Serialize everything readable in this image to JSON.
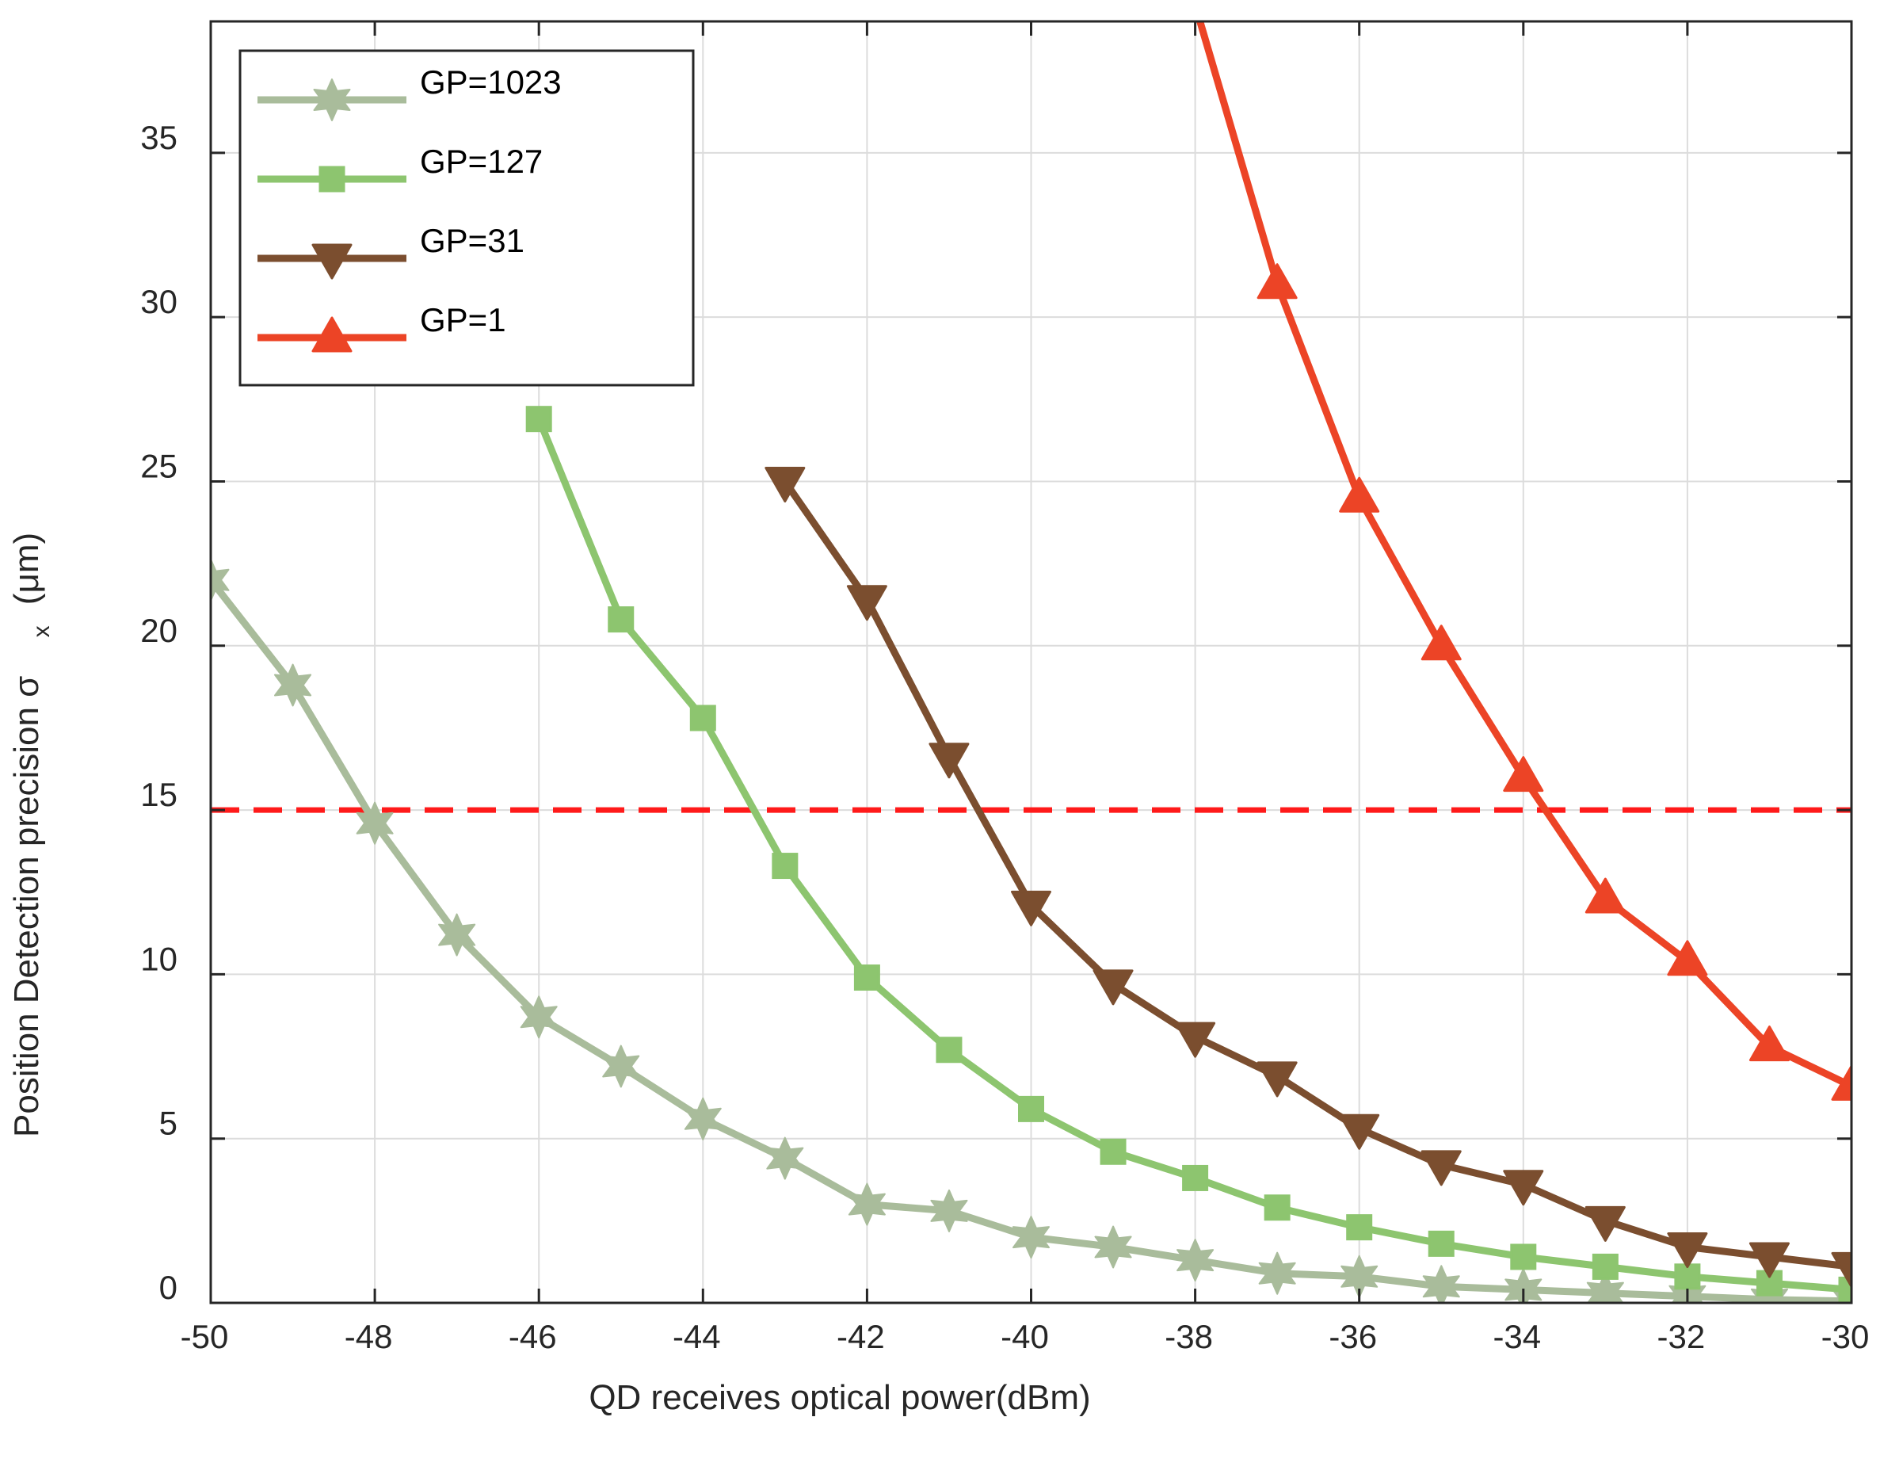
{
  "chart_data": {
    "type": "line",
    "title": "",
    "xlabel": "QD receives optical power(dBm)",
    "ylabel": "Position Detection precision σ",
    "ylabel_sub": "x",
    "ylabel_unit": "(μm)",
    "xlim": [
      -50,
      -30
    ],
    "ylim": [
      0,
      39
    ],
    "xticks": [
      -50,
      -48,
      -46,
      -44,
      -42,
      -40,
      -38,
      -36,
      -34,
      -32,
      -30
    ],
    "yticks": [
      0,
      5,
      10,
      15,
      20,
      25,
      30,
      35
    ],
    "grid": true,
    "legend_position": "top-left",
    "threshold": 15,
    "threshold_color": "#ff1a1a",
    "series": [
      {
        "name": "GP=1023",
        "color": "#a9bc9b",
        "marker": "star",
        "x": [
          -50,
          -49,
          -48,
          -47,
          -46,
          -45,
          -44,
          -43,
          -42,
          -41,
          -40,
          -39,
          -38,
          -37,
          -36,
          -35,
          -34,
          -33,
          -32,
          -31,
          -30
        ],
        "y": [
          22.0,
          18.8,
          14.6,
          11.2,
          8.7,
          7.2,
          5.6,
          4.4,
          3.0,
          2.8,
          2.0,
          1.7,
          1.3,
          0.9,
          0.8,
          0.5,
          0.4,
          0.3,
          0.2,
          0.1,
          0.05
        ]
      },
      {
        "name": "GP=127",
        "color": "#8dc56f",
        "marker": "square",
        "x": [
          -46,
          -45,
          -44,
          -43,
          -42,
          -41,
          -40,
          -39,
          -38,
          -37,
          -36,
          -35,
          -34,
          -33,
          -32,
          -31,
          -30
        ],
        "y": [
          26.9,
          20.8,
          17.8,
          13.3,
          9.9,
          7.7,
          5.9,
          4.6,
          3.8,
          2.9,
          2.3,
          1.8,
          1.4,
          1.1,
          0.8,
          0.6,
          0.4
        ]
      },
      {
        "name": "GP=31",
        "color": "#7b4e2f",
        "marker": "triangle-down",
        "x": [
          -43,
          -42,
          -41,
          -40,
          -39,
          -38,
          -37,
          -36,
          -35,
          -34,
          -33,
          -32,
          -31,
          -30
        ],
        "y": [
          25.0,
          21.4,
          16.6,
          12.1,
          9.7,
          8.1,
          6.9,
          5.3,
          4.2,
          3.6,
          2.5,
          1.7,
          1.4,
          1.1
        ]
      },
      {
        "name": "GP=1",
        "color": "#ec4426",
        "marker": "triangle-up",
        "x": [
          -38,
          -37,
          -36,
          -35,
          -34,
          -33,
          -32,
          -31,
          -30
        ],
        "y": [
          39.5,
          31.0,
          24.5,
          20.0,
          16.0,
          12.3,
          10.4,
          7.8,
          6.6
        ]
      }
    ]
  }
}
